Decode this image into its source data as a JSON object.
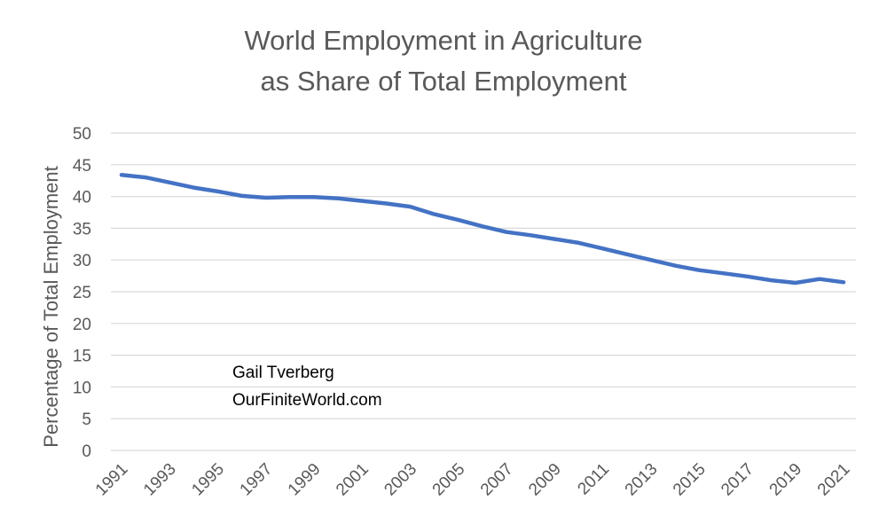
{
  "chart_data": {
    "type": "line",
    "title_lines": [
      "World Employment in Agriculture",
      "as Share of Total Employment"
    ],
    "xlabel": "",
    "ylabel": "Percentage of Total Employment",
    "ylim": [
      0,
      50
    ],
    "yticks": [
      0,
      5,
      10,
      15,
      20,
      25,
      30,
      35,
      40,
      45,
      50
    ],
    "xticks": [
      "1991",
      "1993",
      "1995",
      "1997",
      "1999",
      "2001",
      "2003",
      "2005",
      "2007",
      "2009",
      "2011",
      "2013",
      "2015",
      "2017",
      "2019",
      "2021"
    ],
    "x": [
      1991,
      1992,
      1993,
      1994,
      1995,
      1996,
      1997,
      1998,
      1999,
      2000,
      2001,
      2002,
      2003,
      2004,
      2005,
      2006,
      2007,
      2008,
      2009,
      2010,
      2011,
      2012,
      2013,
      2014,
      2015,
      2016,
      2017,
      2018,
      2019,
      2020,
      2021
    ],
    "series": [
      {
        "values": [
          43.4,
          43.0,
          42.2,
          41.4,
          40.8,
          40.1,
          39.8,
          39.9,
          39.9,
          39.7,
          39.3,
          38.9,
          38.4,
          37.2,
          36.3,
          35.3,
          34.4,
          33.9,
          33.3,
          32.7,
          31.8,
          30.9,
          30.0,
          29.1,
          28.4,
          27.9,
          27.4,
          26.8,
          26.4,
          27.0,
          26.5
        ],
        "color": "#4472C4"
      }
    ],
    "grid": true,
    "legend": "none",
    "annotations": [
      "Gail Tverberg",
      "OurFiniteWorld.com"
    ],
    "colors": {
      "line": "#4472C4",
      "grid": "#d9d9d9",
      "text": "#595959"
    }
  }
}
